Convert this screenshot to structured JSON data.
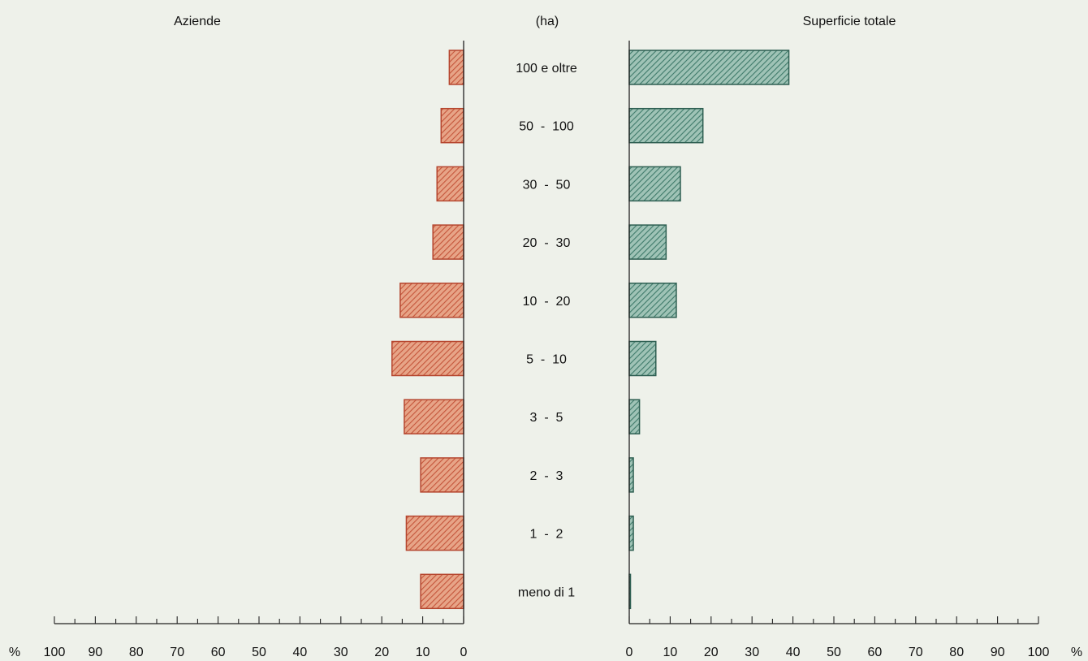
{
  "chart_data": {
    "type": "bar",
    "orientation": "horizontal-butterfly",
    "center_header": "(ha)",
    "categories": [
      "100 e oltre",
      "50  -  100",
      "30  -  50",
      "20  -  30",
      "10  -  20",
      "5  -  10",
      "3  -  5",
      "2  -  3",
      "1  -  2",
      "meno di 1"
    ],
    "series": [
      {
        "name": "Aziende",
        "side": "left",
        "color": "#d0674b",
        "values": [
          3.5,
          5.5,
          6.5,
          7.5,
          15.5,
          17.5,
          14.5,
          10.5,
          14,
          10.5
        ]
      },
      {
        "name": "Superficie totale",
        "side": "right",
        "color": "#4a8878",
        "values": [
          39,
          18,
          12.5,
          9,
          11.5,
          6.5,
          2.5,
          1,
          1,
          0.3
        ]
      }
    ],
    "left_axis": {
      "ticks": [
        "100",
        "90",
        "80",
        "70",
        "60",
        "50",
        "40",
        "30",
        "20",
        "10",
        "0"
      ],
      "unit": "%"
    },
    "right_axis": {
      "ticks": [
        "0",
        "10",
        "20",
        "30",
        "40",
        "50",
        "60",
        "70",
        "80",
        "90",
        "100"
      ],
      "unit": "%"
    },
    "xlim": [
      0,
      100
    ]
  }
}
